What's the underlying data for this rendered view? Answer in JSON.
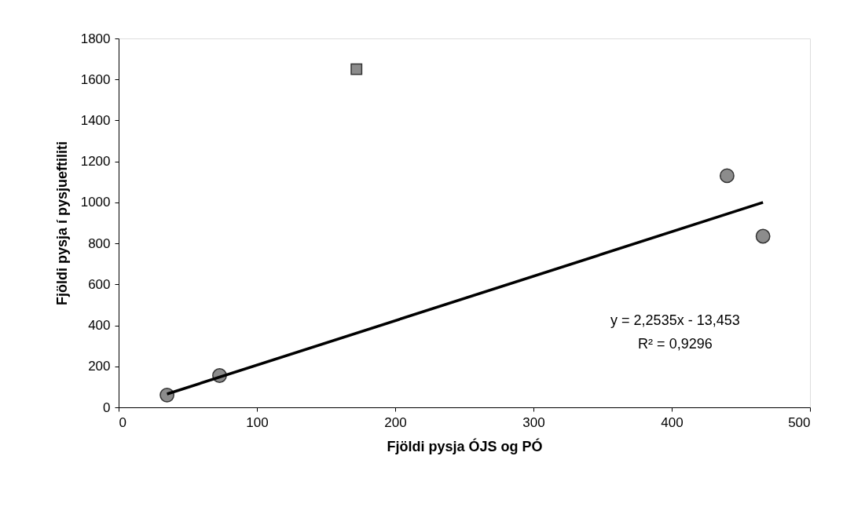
{
  "chart_data": {
    "type": "scatter",
    "xlabel": "Fjöldi pysja ÓJS og PÓ",
    "ylabel": "Fjöldi pysja í pysjueftiliti",
    "series": [
      {
        "marker": "circle",
        "color": "#8c8c8c",
        "x": [
          35,
          73,
          440,
          466
        ],
        "values": [
          60,
          155,
          1130,
          835
        ]
      },
      {
        "marker": "square",
        "color": "#8c8c8c",
        "x": [
          172
        ],
        "values": [
          1650
        ]
      },
      {
        "type": "line",
        "color": "#000000",
        "x": [
          35,
          466
        ],
        "values": [
          65,
          1000
        ]
      }
    ],
    "annotations": [
      "y = 2,2535x - 13,453",
      "R² = 0,9296"
    ],
    "xlim": [
      0,
      500
    ],
    "xticks": [
      0,
      100,
      200,
      300,
      400,
      500
    ],
    "ylim": [
      0,
      1800
    ],
    "yticks": [
      0,
      200,
      400,
      600,
      800,
      1000,
      1200,
      1400,
      1600,
      1800
    ],
    "grid": false
  }
}
